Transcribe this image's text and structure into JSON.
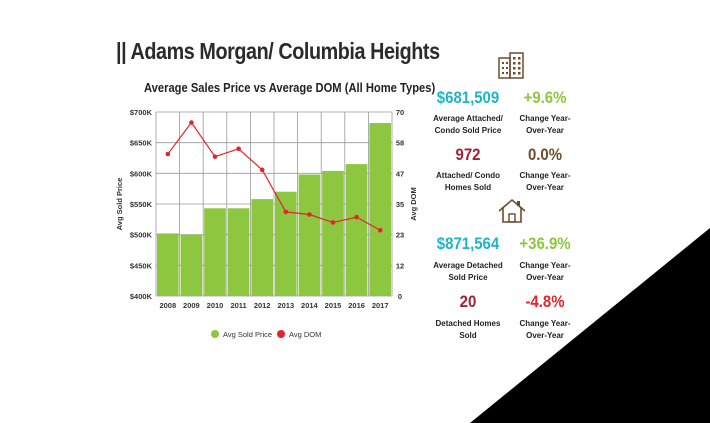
{
  "header": {
    "title": "|| Adams Morgan/ Columbia Heights"
  },
  "chart_data": {
    "type": "bar",
    "title": "Average Sales Price vs Average DOM (All Home Types)",
    "categories": [
      "2008",
      "2009",
      "2010",
      "2011",
      "2012",
      "2013",
      "2014",
      "2015",
      "2016",
      "2017"
    ],
    "ylabel": "Avg Sold Price",
    "y2label": "Avg DOM",
    "ylim": [
      400000,
      700000
    ],
    "y2lim": [
      0,
      70
    ],
    "y_ticks": [
      "$400K",
      "$450K",
      "$500K",
      "$550K",
      "$600K",
      "$650K",
      "$700K"
    ],
    "y2_ticks": [
      "0",
      "12",
      "23",
      "35",
      "47",
      "58",
      "70"
    ],
    "grid": true,
    "legend_position": "bottom",
    "series": [
      {
        "name": "Avg Sold Price",
        "type": "bar",
        "color": "#8dc63f",
        "values": [
          502000,
          500000,
          543000,
          543000,
          558000,
          570000,
          598000,
          604000,
          615000,
          682000
        ]
      },
      {
        "name": "Avg DOM",
        "type": "line",
        "axis": "right",
        "color": "#e3242b",
        "values": [
          54,
          66,
          53,
          56,
          48,
          32,
          31,
          28,
          30,
          25
        ]
      }
    ]
  },
  "stats": {
    "attached_price": {
      "value": "$681,509",
      "label": "Average Attached/\nCondo Sold Price",
      "color": "#1fb5c4"
    },
    "attached_price_change": {
      "value": "+9.6%",
      "label": "Change Year-\nOver-Year",
      "color": "#8dc63f"
    },
    "attached_sold": {
      "value": "972",
      "label": "Attached/ Condo\nHomes Sold",
      "color": "#a3203b"
    },
    "attached_sold_change": {
      "value": "0.0%",
      "label": "Change Year-\nOver-Year",
      "color": "#6b4d2e"
    },
    "detached_price": {
      "value": "$871,564",
      "label": "Average Detached\nSold Price",
      "color": "#1fb5c4"
    },
    "detached_price_change": {
      "value": "+36.9%",
      "label": "Change Year-\nOver-Year",
      "color": "#8dc63f"
    },
    "detached_sold": {
      "value": "20",
      "label": "Detached Homes\nSold",
      "color": "#a3203b"
    },
    "detached_sold_change": {
      "value": "-4.8%",
      "label": "Change Year-\nOver-Year",
      "color": "#e3242b"
    }
  },
  "icons": {
    "condo": "building-icon",
    "detached": "house-icon"
  }
}
